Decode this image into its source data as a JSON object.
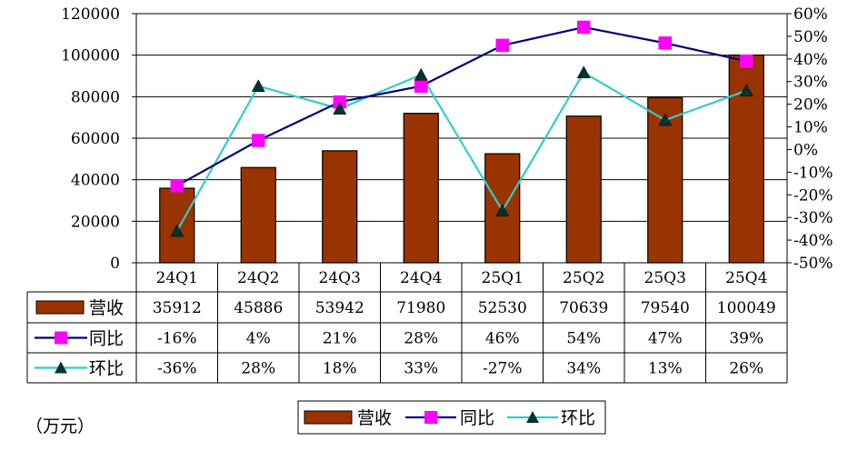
{
  "chart_data": {
    "type": "bar",
    "categories": [
      "24Q1",
      "24Q2",
      "24Q3",
      "24Q4",
      "25Q1",
      "25Q2",
      "25Q3",
      "25Q4"
    ],
    "series": [
      {
        "name": "营收",
        "type": "bar",
        "axis": "left",
        "color": "#993300",
        "values": [
          35912,
          45886,
          53942,
          71980,
          52530,
          70639,
          79540,
          100049
        ],
        "labels": [
          "35912",
          "45886",
          "53942",
          "71980",
          "52530",
          "70639",
          "79540",
          "100049"
        ]
      },
      {
        "name": "同比",
        "type": "line",
        "axis": "right",
        "color": "#000080",
        "marker": "square",
        "marker_color": "#FF00FF",
        "values": [
          -16,
          4,
          21,
          28,
          46,
          54,
          47,
          39
        ],
        "labels": [
          "-16%",
          "4%",
          "21%",
          "28%",
          "46%",
          "54%",
          "47%",
          "39%"
        ]
      },
      {
        "name": "环比",
        "type": "line",
        "axis": "right",
        "color": "#33CCCC",
        "marker": "triangle",
        "marker_color": "#003333",
        "values": [
          -36,
          28,
          18,
          33,
          -27,
          34,
          13,
          26
        ],
        "labels": [
          "-36%",
          "28%",
          "18%",
          "33%",
          "-27%",
          "34%",
          "13%",
          "26%"
        ]
      }
    ],
    "y_left": {
      "ylim": [
        0,
        120000
      ],
      "ticks": [
        "0",
        "20000",
        "40000",
        "60000",
        "80000",
        "100000",
        "120000"
      ]
    },
    "y_right": {
      "ylim": [
        -50,
        60
      ],
      "ticks": [
        "-50%",
        "-40%",
        "-30%",
        "-20%",
        "-10%",
        "0%",
        "10%",
        "20%",
        "30%",
        "40%",
        "50%",
        "60%"
      ]
    },
    "legend": {
      "placement": "bottom",
      "items": [
        "营收",
        "同比",
        "环比"
      ]
    },
    "unit_label": "（万元）"
  }
}
